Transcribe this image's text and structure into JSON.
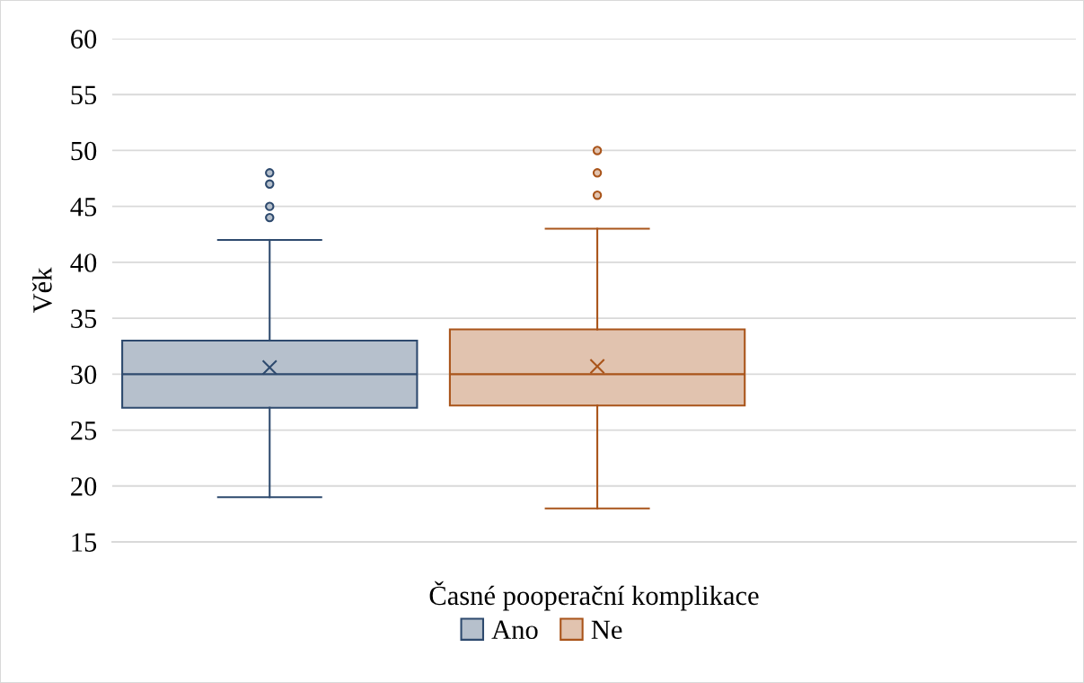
{
  "chart_data": {
    "type": "box",
    "xlabel": "Časné pooperační komplikace",
    "ylabel": "Věk",
    "categories": [
      null
    ],
    "series": [
      {
        "name": "Ano",
        "color": "#2e4a6e",
        "boxes": [
          {
            "low": 19,
            "q1": 27,
            "median": 30,
            "q3": 33,
            "high": 42,
            "mean": 30.6,
            "outliers": [
              44,
              45,
              47,
              48
            ]
          }
        ]
      },
      {
        "name": "Ne",
        "color": "#a9541a",
        "boxes": [
          {
            "low": 18,
            "q1": 27.2,
            "median": 30,
            "q3": 34,
            "high": 43,
            "mean": 30.7,
            "outliers": [
              46,
              48,
              50
            ]
          }
        ]
      }
    ],
    "ylim": [
      15,
      60
    ],
    "yticks": [
      15,
      20,
      25,
      30,
      35,
      40,
      45,
      50,
      55,
      60
    ],
    "grid": "y",
    "legend": "bottom"
  }
}
